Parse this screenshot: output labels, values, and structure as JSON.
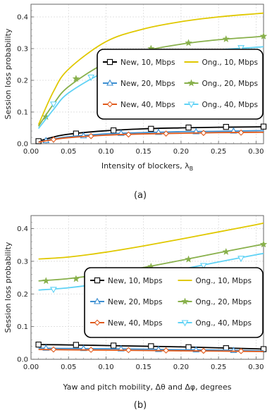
{
  "colors": {
    "new10": "#000000",
    "new20": "#3d8fd1",
    "new40": "#e05a1c",
    "ong10": "#e0c800",
    "ong20": "#88b04b",
    "ong40": "#5fd2f5"
  },
  "chart_data": [
    {
      "type": "line",
      "caption": "(a)",
      "xlabel": "Intensity of blockers, λ",
      "xlabel_sub": "B",
      "ylabel": "Session loss probability",
      "xlim": [
        0.0,
        0.31
      ],
      "ylim": [
        0.0,
        0.44
      ],
      "xticks": [
        0.0,
        0.05,
        0.1,
        0.15,
        0.2,
        0.25,
        0.3
      ],
      "xtick_labels": [
        "0.00",
        "0.05",
        "0.10",
        "0.15",
        "0.20",
        "0.25",
        "0.30"
      ],
      "yticks": [
        0.0,
        0.1,
        0.2,
        0.3,
        0.4
      ],
      "ytick_labels": [
        "0.0",
        "0.1",
        "0.2",
        "0.3",
        "0.4"
      ],
      "grid": true,
      "legend_position": "right",
      "series": [
        {
          "name": "New, 10, Mbps",
          "color_key": "new10",
          "marker": "square",
          "x": [
            0.01,
            0.03,
            0.05,
            0.1,
            0.15,
            0.2,
            0.25,
            0.3,
            0.31
          ],
          "y": [
            0.008,
            0.021,
            0.03,
            0.041,
            0.047,
            0.05,
            0.052,
            0.053,
            0.054
          ],
          "mx": [
            0.01,
            0.06,
            0.11,
            0.16,
            0.21,
            0.26,
            0.31
          ],
          "my": [
            0.008,
            0.032,
            0.042,
            0.047,
            0.051,
            0.053,
            0.054
          ]
        },
        {
          "name": "Ong., 10, Mbps",
          "color_key": "ong10",
          "marker": "none",
          "x": [
            0.01,
            0.03,
            0.05,
            0.1,
            0.15,
            0.2,
            0.25,
            0.3,
            0.31
          ],
          "y": [
            0.06,
            0.165,
            0.235,
            0.322,
            0.362,
            0.385,
            0.4,
            0.41,
            0.412
          ],
          "mx": [],
          "my": []
        },
        {
          "name": "New, 20, Mbps",
          "color_key": "new20",
          "marker": "triangle",
          "x": [
            0.01,
            0.03,
            0.05,
            0.1,
            0.15,
            0.2,
            0.25,
            0.3,
            0.31
          ],
          "y": [
            0.006,
            0.015,
            0.022,
            0.031,
            0.035,
            0.038,
            0.039,
            0.041,
            0.041
          ],
          "mx": [
            0.02,
            0.07,
            0.12,
            0.17,
            0.22,
            0.27
          ],
          "my": [
            0.01,
            0.025,
            0.033,
            0.036,
            0.038,
            0.04
          ]
        },
        {
          "name": "Ong., 20, Mbps",
          "color_key": "ong20",
          "marker": "star",
          "x": [
            0.01,
            0.03,
            0.05,
            0.1,
            0.15,
            0.2,
            0.25,
            0.3,
            0.31
          ],
          "y": [
            0.055,
            0.125,
            0.18,
            0.255,
            0.292,
            0.314,
            0.328,
            0.337,
            0.339
          ],
          "mx": [
            0.02,
            0.06,
            0.11,
            0.16,
            0.21,
            0.26,
            0.31
          ],
          "my": [
            0.085,
            0.205,
            0.27,
            0.3,
            0.318,
            0.33,
            0.339
          ]
        },
        {
          "name": "New, 40, Mbps",
          "color_key": "new40",
          "marker": "diamond",
          "x": [
            0.01,
            0.03,
            0.05,
            0.1,
            0.15,
            0.2,
            0.25,
            0.3,
            0.31
          ],
          "y": [
            0.005,
            0.013,
            0.019,
            0.027,
            0.031,
            0.033,
            0.035,
            0.036,
            0.036
          ],
          "mx": [
            0.03,
            0.08,
            0.13,
            0.18,
            0.23,
            0.28
          ],
          "my": [
            0.013,
            0.024,
            0.029,
            0.032,
            0.034,
            0.035
          ]
        },
        {
          "name": "Ong., 40, Mbps",
          "color_key": "ong40",
          "marker": "triangle-down",
          "x": [
            0.01,
            0.03,
            0.05,
            0.1,
            0.15,
            0.2,
            0.25,
            0.3,
            0.31
          ],
          "y": [
            0.048,
            0.108,
            0.16,
            0.228,
            0.263,
            0.283,
            0.296,
            0.304,
            0.306
          ],
          "mx": [
            0.03,
            0.08,
            0.13,
            0.18,
            0.23,
            0.28
          ],
          "my": [
            0.125,
            0.21,
            0.245,
            0.275,
            0.29,
            0.303
          ]
        }
      ]
    },
    {
      "type": "line",
      "caption": "(b)",
      "xlabel": "Yaw and pitch mobility, Δθ and Δφ, degrees",
      "xlabel_sub": "",
      "ylabel": "Session loss probability",
      "xlim": [
        0.0,
        0.31
      ],
      "ylim": [
        0.0,
        0.44
      ],
      "xticks": [
        0.0,
        0.05,
        0.1,
        0.15,
        0.2,
        0.25,
        0.3
      ],
      "xtick_labels": [
        "0.00",
        "0.05",
        "0.10",
        "0.15",
        "0.20",
        "0.25",
        "0.30"
      ],
      "yticks": [
        0.0,
        0.1,
        0.2,
        0.3,
        0.4
      ],
      "ytick_labels": [
        "0.0",
        "0.1",
        "0.2",
        "0.3",
        "0.4"
      ],
      "grid": true,
      "legend_position": "bottom-right",
      "series": [
        {
          "name": "New, 10, Mbps",
          "color_key": "new10",
          "marker": "square",
          "x": [
            0.01,
            0.05,
            0.1,
            0.15,
            0.2,
            0.25,
            0.3,
            0.31
          ],
          "y": [
            0.045,
            0.044,
            0.042,
            0.04,
            0.038,
            0.035,
            0.032,
            0.031
          ],
          "mx": [
            0.01,
            0.06,
            0.11,
            0.16,
            0.21,
            0.26,
            0.31
          ],
          "my": [
            0.045,
            0.044,
            0.042,
            0.04,
            0.037,
            0.034,
            0.031
          ]
        },
        {
          "name": "Ong., 10, Mbps",
          "color_key": "ong10",
          "marker": "none",
          "x": [
            0.01,
            0.05,
            0.1,
            0.15,
            0.2,
            0.25,
            0.3,
            0.31
          ],
          "y": [
            0.307,
            0.313,
            0.328,
            0.347,
            0.368,
            0.39,
            0.412,
            0.417
          ],
          "mx": [],
          "my": []
        },
        {
          "name": "New, 20, Mbps",
          "color_key": "new20",
          "marker": "triangle",
          "x": [
            0.01,
            0.05,
            0.1,
            0.15,
            0.2,
            0.25,
            0.3,
            0.31
          ],
          "y": [
            0.034,
            0.033,
            0.032,
            0.031,
            0.029,
            0.028,
            0.026,
            0.026
          ],
          "mx": [
            0.02,
            0.07,
            0.12,
            0.17,
            0.22,
            0.27
          ],
          "my": [
            0.034,
            0.033,
            0.032,
            0.03,
            0.029,
            0.027
          ]
        },
        {
          "name": "Ong., 20, Mbps",
          "color_key": "ong20",
          "marker": "star",
          "x": [
            0.01,
            0.05,
            0.1,
            0.15,
            0.2,
            0.25,
            0.3,
            0.31
          ],
          "y": [
            0.24,
            0.247,
            0.262,
            0.281,
            0.303,
            0.326,
            0.348,
            0.352
          ],
          "mx": [
            0.02,
            0.06,
            0.11,
            0.16,
            0.21,
            0.26,
            0.31
          ],
          "my": [
            0.24,
            0.246,
            0.264,
            0.284,
            0.306,
            0.329,
            0.352
          ]
        },
        {
          "name": "New, 40, Mbps",
          "color_key": "new40",
          "marker": "diamond",
          "x": [
            0.01,
            0.05,
            0.1,
            0.15,
            0.2,
            0.25,
            0.3,
            0.31
          ],
          "y": [
            0.03,
            0.029,
            0.028,
            0.027,
            0.026,
            0.025,
            0.024,
            0.024
          ],
          "mx": [
            0.03,
            0.08,
            0.13,
            0.18,
            0.23,
            0.28
          ],
          "my": [
            0.03,
            0.029,
            0.028,
            0.027,
            0.026,
            0.025
          ]
        },
        {
          "name": "Ong., 40, Mbps",
          "color_key": "ong40",
          "marker": "triangle-down",
          "x": [
            0.01,
            0.05,
            0.1,
            0.15,
            0.2,
            0.25,
            0.3,
            0.31
          ],
          "y": [
            0.212,
            0.219,
            0.234,
            0.253,
            0.275,
            0.298,
            0.32,
            0.324
          ],
          "mx": [
            0.03,
            0.08,
            0.13,
            0.18,
            0.23,
            0.28
          ],
          "my": [
            0.214,
            0.225,
            0.242,
            0.264,
            0.287,
            0.309
          ]
        }
      ]
    }
  ]
}
